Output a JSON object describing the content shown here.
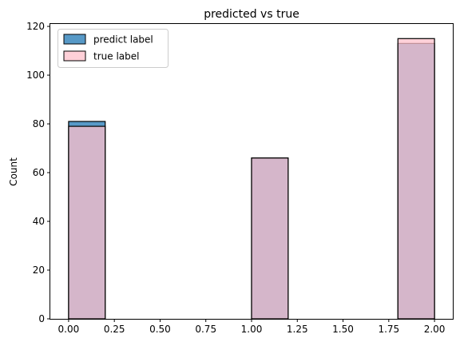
{
  "chart_data": {
    "type": "bar",
    "title": "predicted vs true",
    "xlabel": "",
    "ylabel": "Count",
    "xlim": [
      -0.1,
      2.1
    ],
    "ylim": [
      0,
      121
    ],
    "xticks": [
      0.0,
      0.25,
      0.5,
      0.75,
      1.0,
      1.25,
      1.5,
      1.75,
      2.0
    ],
    "xtick_labels": [
      "0.00",
      "0.25",
      "0.50",
      "0.75",
      "1.00",
      "1.25",
      "1.50",
      "1.75",
      "2.00"
    ],
    "yticks": [
      0,
      20,
      40,
      60,
      80,
      100,
      120
    ],
    "ytick_labels": [
      "0",
      "20",
      "40",
      "60",
      "80",
      "100",
      "120"
    ],
    "grid": false,
    "legend_position": "top-left",
    "series": [
      {
        "name": "predict label",
        "color": "#1f77b4",
        "bins": [
          {
            "x0": 0.0,
            "x1": 0.2,
            "count": 81
          },
          {
            "x0": 1.0,
            "x1": 1.2,
            "count": 66
          },
          {
            "x0": 1.8,
            "x1": 2.0,
            "count": 113
          }
        ]
      },
      {
        "name": "true label",
        "color": "#ffc0cb",
        "bins": [
          {
            "x0": 0.0,
            "x1": 0.2,
            "count": 79
          },
          {
            "x0": 1.0,
            "x1": 1.2,
            "count": 66
          },
          {
            "x0": 1.8,
            "x1": 2.0,
            "count": 115
          }
        ]
      }
    ]
  }
}
